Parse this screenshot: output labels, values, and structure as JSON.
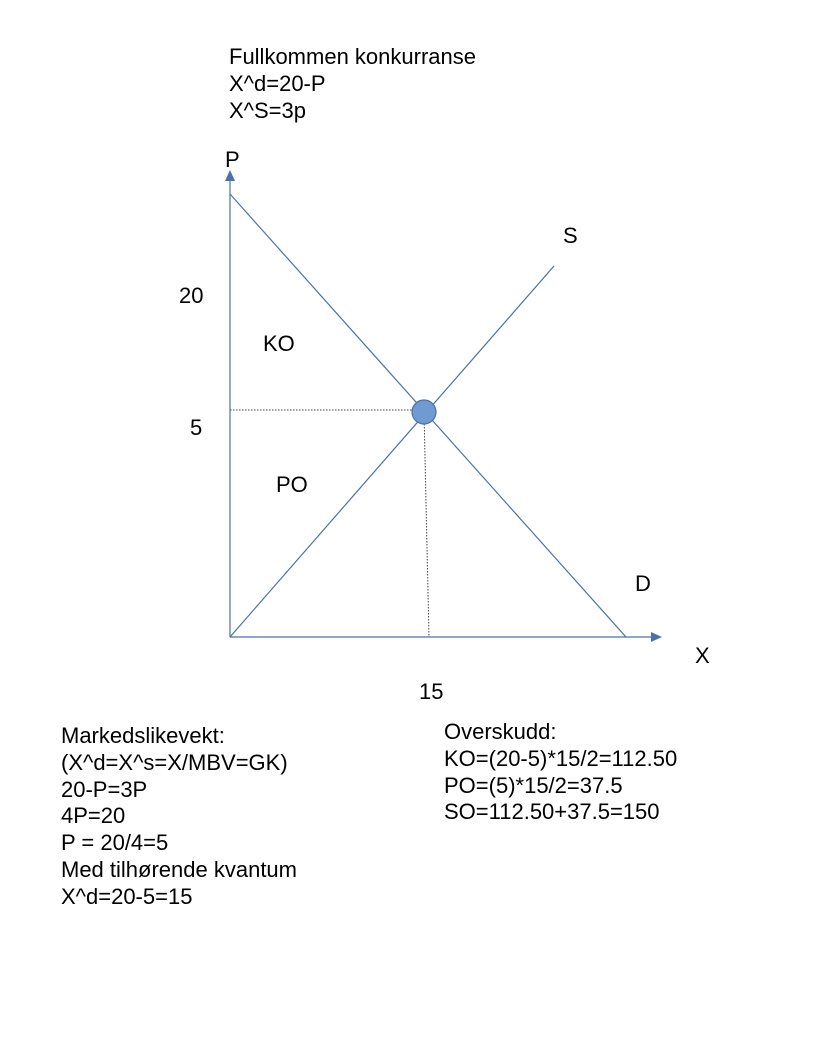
{
  "header": {
    "lines": [
      "Fullkommen konkurranse",
      "X^d=20-P",
      "X^S=3p"
    ]
  },
  "diagram": {
    "axis_y_label": "P",
    "axis_x_label": "X",
    "supply_label": "S",
    "demand_label": "D",
    "consumer_surplus_label": "KO",
    "producer_surplus_label": "PO",
    "tick_price_intercept": "20",
    "tick_equilibrium_price": "5",
    "tick_equilibrium_quantity": "15",
    "colors": {
      "line": "#4a72a8",
      "equilibrium_point": "#6f9bd1",
      "axis": "#4a72a8"
    }
  },
  "equilibrium_calc": {
    "lines": [
      "Markedslikevekt:",
      "(X^d=X^s=X/MBV=GK)",
      "20-P=3P",
      "4P=20",
      "P = 20/4=5",
      "Med tilhørende kvantum",
      "X^d=20-5=15"
    ]
  },
  "surplus_calc": {
    "lines": [
      "Overskudd:",
      "KO=(20-5)*15/2=112.50",
      "PO=(5)*15/2=37.5",
      "SO=112.50+37.5=150"
    ]
  }
}
